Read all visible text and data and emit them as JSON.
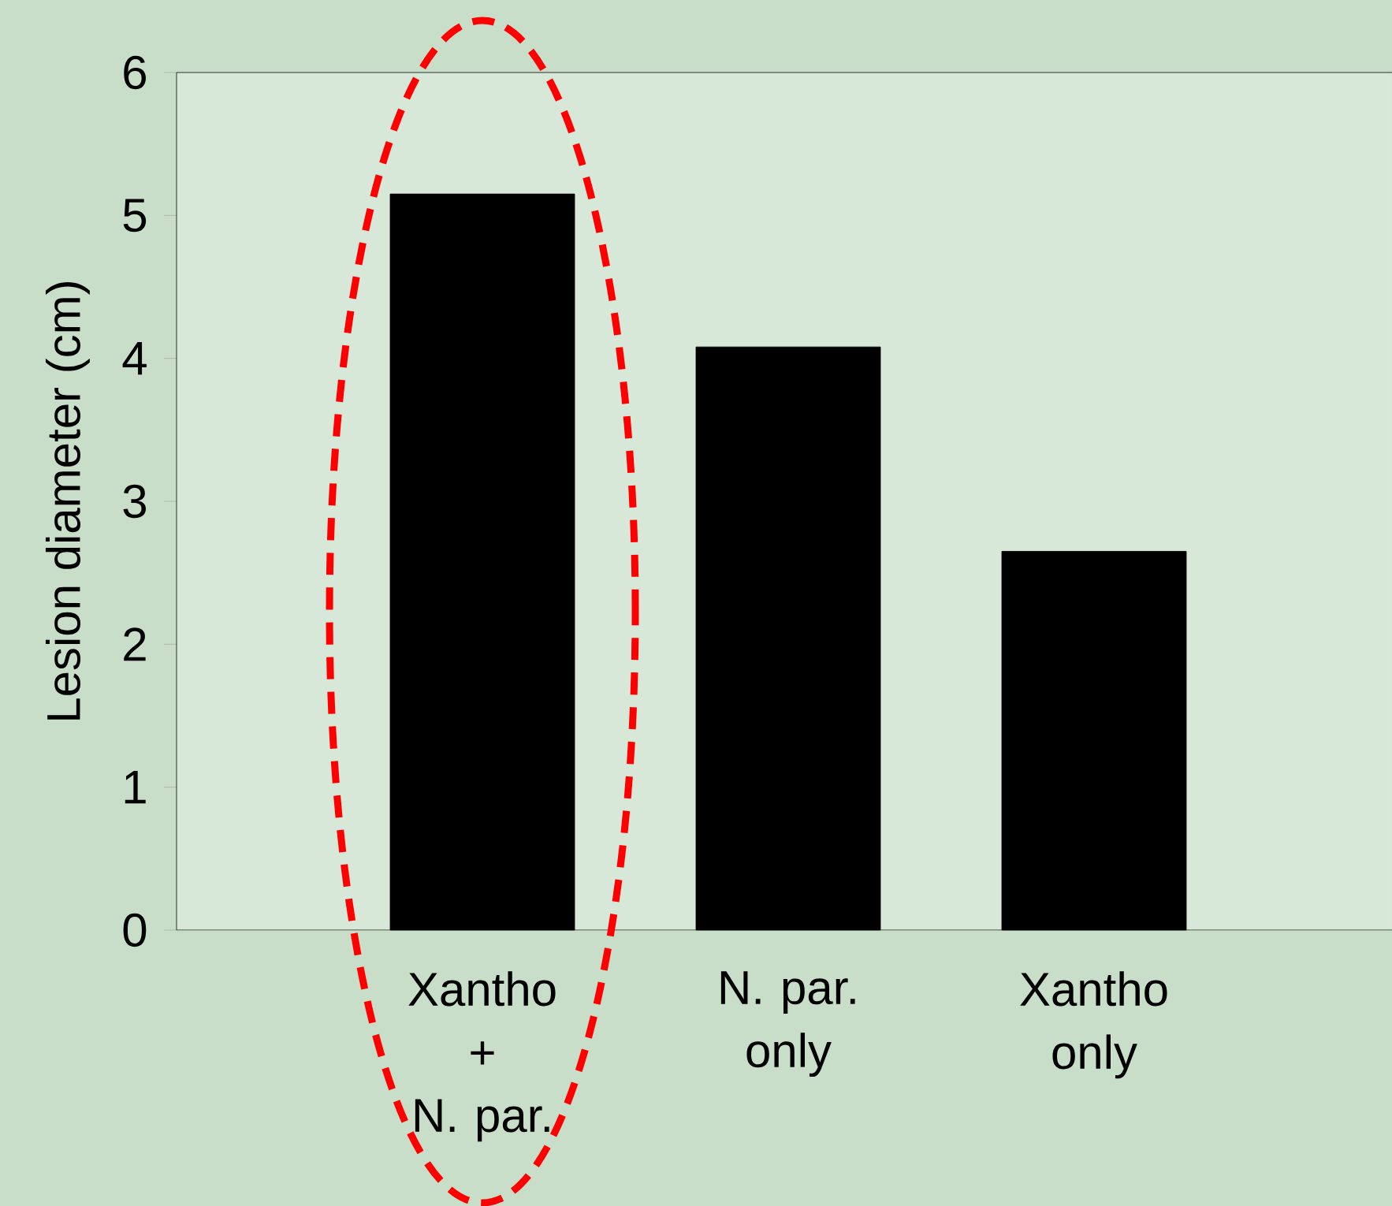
{
  "chart_data": {
    "type": "bar",
    "ylabel": "Lesion diameter (cm)",
    "categories": [
      "Xantho + N. par.",
      "N. par. only",
      "Xantho only"
    ],
    "values": [
      5.15,
      4.08,
      2.65
    ],
    "color": "#000000",
    "ylim": [
      0,
      6
    ],
    "yticks": [
      0,
      1,
      2,
      3,
      4,
      5,
      6
    ],
    "grid": false
  }
}
